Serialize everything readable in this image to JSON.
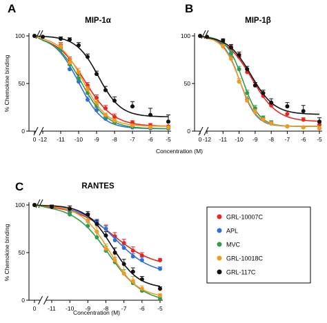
{
  "figure": {
    "ylabel": "% Chemokine binding",
    "xlabel": "Concentration (M)"
  },
  "legend": {
    "placement": "lower-right",
    "entries": [
      {
        "name": "GRL-10007C",
        "color": "#e8261f"
      },
      {
        "name": "APL",
        "color": "#2f6fd8"
      },
      {
        "name": "MVC",
        "color": "#2e9d4f"
      },
      {
        "name": "GRL-10018C",
        "color": "#f29a1e"
      },
      {
        "name": "GRL-117C",
        "color": "#111111"
      }
    ]
  },
  "chart_data": [
    {
      "type": "line",
      "panel": "A",
      "title": "MIP-1α",
      "x_tick_labels": [
        "0",
        "-12",
        "-11",
        "-10",
        "-9",
        "-8",
        "-7",
        "-6",
        "-5"
      ],
      "y_tick_labels": [
        "0",
        "50",
        "100"
      ],
      "ylim": [
        0,
        100
      ],
      "xlim_log": [
        -12,
        -5
      ],
      "axis_break": true,
      "zero_point_value": 100,
      "series": [
        {
          "name": "GRL-10007C",
          "color": "#e8261f",
          "x": [
            -12,
            -11,
            -10.5,
            -10,
            -9.5,
            -9,
            -8.5,
            -8,
            -7,
            -6,
            -5
          ],
          "y": [
            99,
            90,
            75,
            60,
            48,
            35,
            24,
            15,
            9,
            6,
            5
          ],
          "err": [
            1,
            3,
            3,
            3,
            3,
            3,
            3,
            3,
            2,
            2,
            1
          ]
        },
        {
          "name": "APL",
          "color": "#2f6fd8",
          "x": [
            -12,
            -11,
            -10.5,
            -10,
            -9.5,
            -9,
            -8.5,
            -8,
            -7,
            -6,
            -5
          ],
          "y": [
            99,
            85,
            65,
            52,
            33,
            22,
            13,
            9,
            4,
            3,
            3
          ],
          "err": [
            1,
            3,
            4,
            5,
            3,
            3,
            2,
            2,
            1,
            1,
            1
          ]
        },
        {
          "name": "MVC",
          "color": "#2e9d4f",
          "x": [
            -12,
            -11,
            -10.5,
            -10,
            -9.5,
            -9,
            -8.5,
            -8,
            -7,
            -6,
            -5
          ],
          "y": [
            99,
            87,
            70,
            55,
            40,
            27,
            15,
            9,
            5,
            4,
            3
          ],
          "err": [
            1,
            3,
            3,
            4,
            3,
            4,
            2,
            2,
            1,
            1,
            1
          ]
        },
        {
          "name": "GRL-10018C",
          "color": "#f29a1e",
          "x": [
            -12,
            -11,
            -10.5,
            -10,
            -9.5,
            -9,
            -8.5,
            -8,
            -7,
            -6,
            -5
          ],
          "y": [
            99,
            89,
            72,
            62,
            44,
            30,
            17,
            11,
            6,
            4,
            4
          ],
          "err": [
            1,
            3,
            3,
            4,
            3,
            3,
            2,
            2,
            1,
            1,
            1
          ]
        },
        {
          "name": "GRL-117C",
          "color": "#111111",
          "x": [
            -12,
            -11,
            -10.5,
            -10,
            -9.5,
            -9,
            -8.5,
            -8,
            -7,
            -6,
            -5
          ],
          "y": [
            99,
            97,
            96,
            90,
            78,
            60,
            43,
            32,
            26,
            17,
            10
          ],
          "err": [
            1,
            2,
            2,
            3,
            3,
            3,
            4,
            4,
            5,
            7,
            7
          ]
        }
      ]
    },
    {
      "type": "line",
      "panel": "B",
      "title": "MIP-1β",
      "x_tick_labels": [
        "0",
        "-12",
        "-11",
        "-10",
        "-9",
        "-8",
        "-7",
        "-6",
        "-5"
      ],
      "y_tick_labels": [
        "0",
        "50",
        "100"
      ],
      "ylim": [
        0,
        100
      ],
      "xlim_log": [
        -12,
        -5
      ],
      "axis_break": true,
      "zero_point_value": 100,
      "series": [
        {
          "name": "GRL-10007C",
          "color": "#e8261f",
          "x": [
            -12,
            -11,
            -10.5,
            -10,
            -9.5,
            -9,
            -8.5,
            -8,
            -7,
            -6,
            -5
          ],
          "y": [
            99,
            94,
            87,
            78,
            62,
            48,
            37,
            27,
            18,
            12,
            7
          ],
          "err": [
            1,
            2,
            3,
            3,
            3,
            3,
            3,
            3,
            3,
            2,
            2
          ]
        },
        {
          "name": "APL",
          "color": "#2f6fd8",
          "x": [
            -12,
            -11,
            -10.5,
            -10,
            -9.5,
            -9,
            -8.5,
            -8,
            -7,
            -6,
            -5
          ],
          "y": [
            99,
            90,
            78,
            52,
            33,
            20,
            12,
            8,
            5,
            4,
            3
          ],
          "err": [
            1,
            2,
            3,
            3,
            3,
            3,
            2,
            2,
            1,
            1,
            1
          ]
        },
        {
          "name": "MVC",
          "color": "#2e9d4f",
          "x": [
            -12,
            -11,
            -10.5,
            -10,
            -9.5,
            -9,
            -8.5,
            -8,
            -7,
            -6,
            -5
          ],
          "y": [
            99,
            92,
            82,
            65,
            40,
            24,
            14,
            9,
            5,
            4,
            3
          ],
          "err": [
            1,
            2,
            3,
            3,
            3,
            3,
            2,
            2,
            1,
            1,
            1
          ]
        },
        {
          "name": "GRL-10018C",
          "color": "#f29a1e",
          "x": [
            -12,
            -11,
            -10.5,
            -10,
            -9.5,
            -9,
            -8.5,
            -8,
            -7,
            -6,
            -5
          ],
          "y": [
            99,
            89,
            76,
            52,
            32,
            20,
            12,
            8,
            5,
            4,
            3
          ],
          "err": [
            1,
            2,
            3,
            3,
            3,
            3,
            2,
            2,
            1,
            1,
            1
          ]
        },
        {
          "name": "GRL-117C",
          "color": "#111111",
          "x": [
            -12,
            -11,
            -10.5,
            -10,
            -9.5,
            -9,
            -8.5,
            -8,
            -7,
            -6,
            -5
          ],
          "y": [
            99,
            95,
            88,
            80,
            65,
            48,
            40,
            30,
            26,
            21,
            10
          ],
          "err": [
            1,
            2,
            3,
            3,
            3,
            3,
            3,
            4,
            4,
            6,
            4
          ]
        }
      ]
    },
    {
      "type": "line",
      "panel": "C",
      "title": "RANTES",
      "x_tick_labels": [
        "0",
        "-11",
        "-10",
        "-9",
        "-8",
        "-7",
        "-6",
        "-5"
      ],
      "y_tick_labels": [
        "0",
        "50",
        "100"
      ],
      "ylim": [
        0,
        100
      ],
      "xlim_log": [
        -11,
        -5
      ],
      "axis_break": true,
      "zero_point_value": 100,
      "series": [
        {
          "name": "GRL-10007C",
          "color": "#e8261f",
          "x": [
            -11,
            -10,
            -9,
            -8.5,
            -8,
            -7.5,
            -7,
            -6.5,
            -6,
            -5
          ],
          "y": [
            98,
            93,
            88,
            80,
            75,
            67,
            60,
            52,
            47,
            42
          ],
          "err": [
            2,
            2,
            3,
            3,
            4,
            4,
            4,
            4,
            3,
            2
          ]
        },
        {
          "name": "APL",
          "color": "#2f6fd8",
          "x": [
            -11,
            -10,
            -9,
            -8.5,
            -8,
            -7.5,
            -7,
            -6.5,
            -6,
            -5
          ],
          "y": [
            98,
            94,
            88,
            82,
            75,
            63,
            55,
            46,
            42,
            33
          ],
          "err": [
            2,
            2,
            3,
            3,
            3,
            3,
            3,
            3,
            3,
            2
          ]
        },
        {
          "name": "MVC",
          "color": "#2e9d4f",
          "x": [
            -11,
            -10,
            -9,
            -8.5,
            -8,
            -7.5,
            -7,
            -6.5,
            -6,
            -5
          ],
          "y": [
            98,
            90,
            78,
            66,
            52,
            40,
            28,
            18,
            10,
            2
          ],
          "err": [
            2,
            3,
            4,
            6,
            5,
            5,
            4,
            3,
            3,
            1
          ]
        },
        {
          "name": "GRL-10018C",
          "color": "#f29a1e",
          "x": [
            -11,
            -10,
            -9,
            -8.5,
            -8,
            -7.5,
            -7,
            -6.5,
            -6,
            -5
          ],
          "y": [
            98,
            96,
            84,
            72,
            54,
            42,
            28,
            20,
            12,
            5
          ],
          "err": [
            2,
            3,
            4,
            5,
            5,
            6,
            10,
            5,
            3,
            2
          ]
        },
        {
          "name": "GRL-117C",
          "color": "#111111",
          "x": [
            -11,
            -10,
            -9,
            -8.5,
            -8,
            -7.5,
            -7,
            -6.5,
            -6,
            -5
          ],
          "y": [
            98,
            96,
            90,
            80,
            68,
            50,
            38,
            30,
            22,
            12
          ],
          "err": [
            2,
            3,
            3,
            4,
            4,
            5,
            5,
            4,
            3,
            2
          ]
        }
      ]
    }
  ]
}
